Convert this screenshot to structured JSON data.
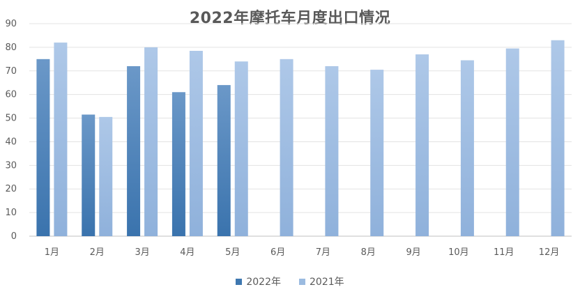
{
  "chart_data": {
    "type": "bar",
    "title": "2022年摩托车月度出口情况",
    "categories": [
      "1月",
      "2月",
      "3月",
      "4月",
      "5月",
      "6月",
      "7月",
      "8月",
      "9月",
      "10月",
      "11月",
      "12月"
    ],
    "series": [
      {
        "name": "2022年",
        "color": "#3f78b0",
        "values": [
          75,
          51.5,
          72,
          61,
          64,
          null,
          null,
          null,
          null,
          null,
          null,
          null
        ]
      },
      {
        "name": "2021年",
        "color": "#9bbbe0",
        "values": [
          82,
          50.5,
          80,
          78.5,
          74,
          75,
          72,
          70.5,
          77,
          74.5,
          79.5,
          83
        ]
      }
    ],
    "ylim": [
      0,
      90
    ],
    "yticks": [
      0,
      10,
      20,
      30,
      40,
      50,
      60,
      70,
      80,
      90
    ],
    "grid": true,
    "legend": "bottom"
  }
}
